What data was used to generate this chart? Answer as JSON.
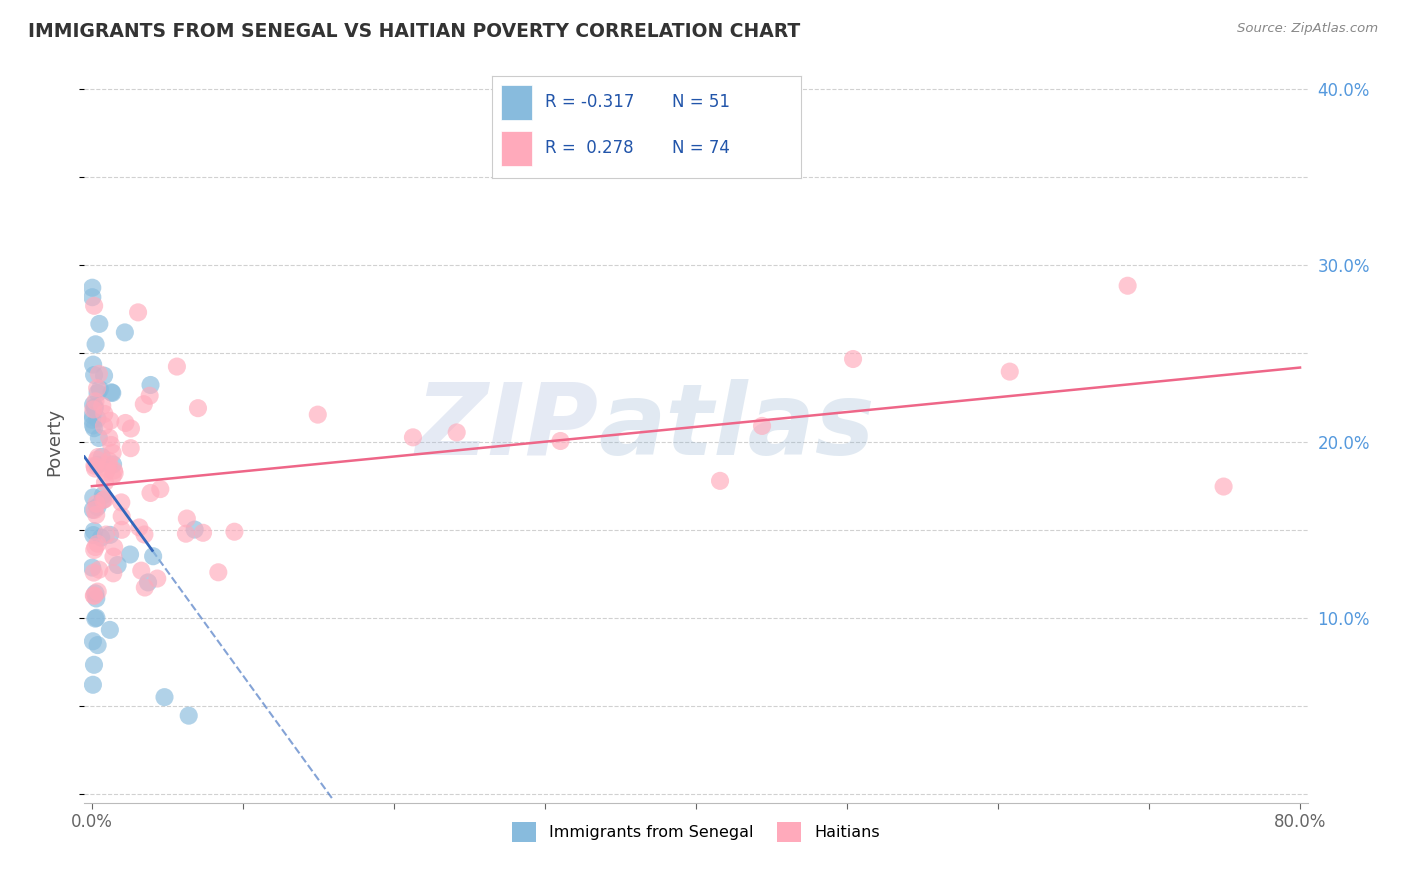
{
  "title": "IMMIGRANTS FROM SENEGAL VS HAITIAN POVERTY CORRELATION CHART",
  "source_text": "Source: ZipAtlas.com",
  "ylabel": "Poverty",
  "watermark_zip": "ZIP",
  "watermark_atlas": "atlas",
  "legend_label_1": "Immigrants from Senegal",
  "legend_label_2": "Haitians",
  "R1": -0.317,
  "N1": 51,
  "R2": 0.278,
  "N2": 74,
  "color_blue": "#88BBDD",
  "color_pink": "#FFAABB",
  "color_blue_line": "#3366BB",
  "color_pink_line": "#EE6688",
  "xlim_min": -0.005,
  "xlim_max": 0.805,
  "ylim_min": -0.005,
  "ylim_max": 0.405,
  "background_color": "#FFFFFF",
  "grid_color": "#CCCCCC",
  "tick_color": "#666666",
  "right_tick_color": "#5599DD",
  "title_color": "#333333",
  "source_color": "#888888"
}
